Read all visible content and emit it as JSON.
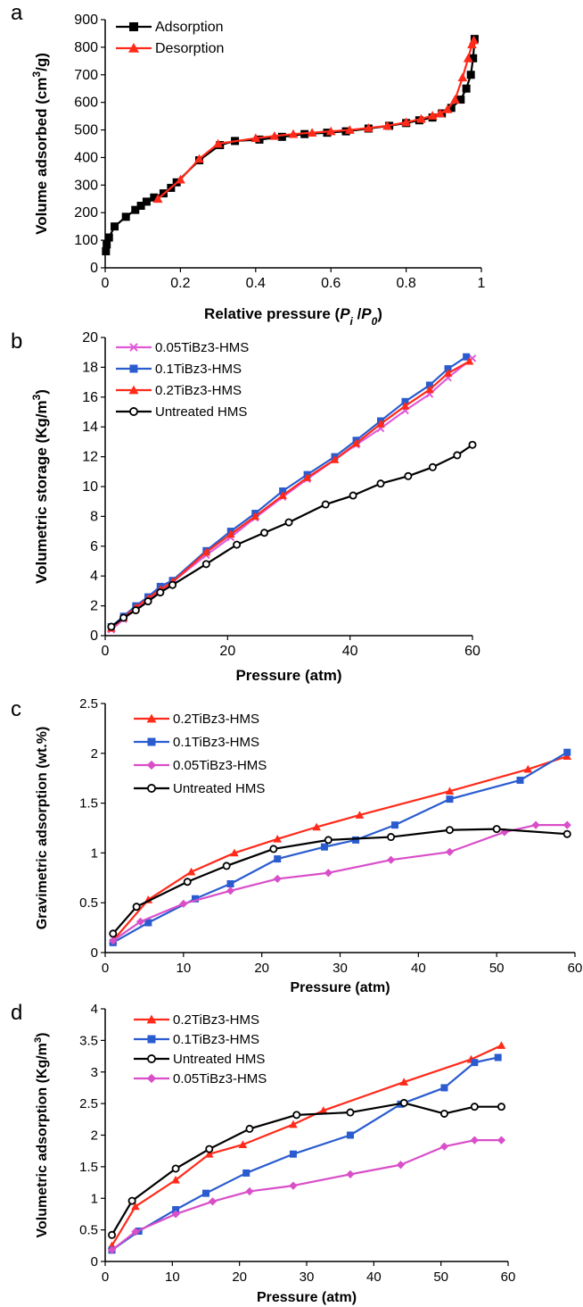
{
  "chart_data": [
    {
      "type": "line",
      "panel_letter": "a",
      "xlabel": "Relative pressure (P",
      "xlabel_parts": [
        "Relative pressure (",
        "P",
        "i",
        " /",
        "P",
        "0",
        ")"
      ],
      "ylabel": "Volume adsorbed (cm",
      "ylabel_parts": [
        "Volume adsorbed (cm",
        "3",
        "/g)"
      ],
      "xlim": [
        0,
        1
      ],
      "ylim": [
        0,
        900
      ],
      "xticks": [
        0,
        0.2,
        0.4,
        0.6,
        0.8,
        1
      ],
      "xtick_labels": [
        "0",
        "0.2",
        "0.4",
        "0.6",
        "0.8",
        "1"
      ],
      "yticks": [
        0,
        100,
        200,
        300,
        400,
        500,
        600,
        700,
        800,
        900
      ],
      "ytick_labels": [
        "0",
        "100",
        "200",
        "300",
        "400",
        "500",
        "600",
        "700",
        "800",
        "900"
      ],
      "legend_position": "top-left",
      "series": [
        {
          "name": "Adsorption",
          "color": "#000000",
          "marker": "square",
          "x": [
            0.002,
            0.004,
            0.01,
            0.025,
            0.055,
            0.08,
            0.095,
            0.11,
            0.13,
            0.155,
            0.175,
            0.19,
            0.25,
            0.305,
            0.345,
            0.41,
            0.47,
            0.53,
            0.59,
            0.64,
            0.7,
            0.755,
            0.8,
            0.835,
            0.87,
            0.895,
            0.92,
            0.945,
            0.96,
            0.972,
            0.978,
            0.982
          ],
          "y": [
            60,
            85,
            110,
            150,
            185,
            210,
            225,
            240,
            255,
            270,
            290,
            310,
            390,
            445,
            460,
            465,
            475,
            485,
            490,
            495,
            505,
            515,
            525,
            535,
            545,
            560,
            580,
            610,
            650,
            700,
            760,
            830
          ]
        },
        {
          "name": "Desorption",
          "color": "#ff2a1a",
          "marker": "triangle",
          "x": [
            0.14,
            0.2,
            0.25,
            0.3,
            0.4,
            0.45,
            0.5,
            0.55,
            0.6,
            0.65,
            0.7,
            0.75,
            0.8,
            0.84,
            0.87,
            0.89,
            0.91,
            0.93,
            0.95,
            0.965,
            0.975,
            0.98
          ],
          "y": [
            250,
            320,
            395,
            450,
            470,
            478,
            485,
            490,
            495,
            500,
            507,
            515,
            528,
            540,
            552,
            560,
            575,
            610,
            690,
            760,
            810,
            825
          ]
        }
      ]
    },
    {
      "type": "line",
      "panel_letter": "b",
      "xlabel": "Pressure (atm)",
      "ylabel_parts": [
        "Volumetric storage (Kg/m",
        "3",
        ")"
      ],
      "xlim": [
        0,
        60
      ],
      "ylim": [
        0,
        20
      ],
      "xticks": [
        0,
        20,
        40,
        60
      ],
      "xtick_labels": [
        "0",
        "20",
        "40",
        "60"
      ],
      "yticks": [
        0,
        2,
        4,
        6,
        8,
        10,
        12,
        14,
        16,
        18,
        20
      ],
      "ytick_labels": [
        "0",
        "2",
        "4",
        "6",
        "8",
        "10",
        "12",
        "14",
        "16",
        "18",
        "20"
      ],
      "legend_position": "top-left",
      "series": [
        {
          "name": "0.05TiBz3-HMS",
          "color": "#e05ad8",
          "marker": "x",
          "x": [
            1,
            3,
            5,
            7,
            9,
            11,
            16.5,
            20.5,
            24.5,
            29,
            33,
            37.5,
            41,
            45,
            49,
            53,
            56,
            60
          ],
          "y": [
            0.4,
            1.1,
            1.8,
            2.4,
            3.0,
            3.6,
            5.4,
            6.6,
            7.9,
            9.3,
            10.5,
            11.8,
            12.8,
            13.9,
            15.1,
            16.2,
            17.3,
            18.6
          ]
        },
        {
          "name": "0.1TiBz3-HMS",
          "color": "#2a5ccf",
          "marker": "square",
          "x": [
            1,
            3,
            5,
            7,
            9,
            11,
            16.5,
            20.5,
            24.5,
            29,
            33,
            37.5,
            41,
            45,
            49,
            53,
            56,
            59
          ],
          "y": [
            0.6,
            1.3,
            2.0,
            2.6,
            3.3,
            3.7,
            5.7,
            7.0,
            8.2,
            9.7,
            10.8,
            12.0,
            13.1,
            14.4,
            15.7,
            16.8,
            17.9,
            18.7
          ]
        },
        {
          "name": "0.2TiBz3-HMS",
          "color": "#ff2a1a",
          "marker": "triangle",
          "x": [
            1,
            3,
            5,
            7,
            9,
            11,
            16.5,
            20.5,
            24.5,
            29,
            33,
            37.5,
            41,
            45,
            49,
            53,
            56,
            59.5
          ],
          "y": [
            0.5,
            1.2,
            1.9,
            2.5,
            3.1,
            3.6,
            5.6,
            6.8,
            8.0,
            9.4,
            10.6,
            11.8,
            12.9,
            14.2,
            15.4,
            16.5,
            17.6,
            18.4
          ]
        },
        {
          "name": "Untreated HMS",
          "color": "#000000",
          "marker": "circle",
          "x": [
            1,
            3,
            5,
            7,
            9,
            11,
            16.5,
            21.5,
            26,
            30,
            36,
            40.5,
            45,
            49.5,
            53.5,
            57.5,
            60
          ],
          "y": [
            0.6,
            1.2,
            1.7,
            2.3,
            2.9,
            3.4,
            4.8,
            6.1,
            6.9,
            7.6,
            8.8,
            9.4,
            10.2,
            10.7,
            11.3,
            12.1,
            12.8
          ]
        }
      ]
    },
    {
      "type": "line",
      "panel_letter": "c",
      "xlabel": "Pressure (atm)",
      "ylabel": "Gravimetric adsorption (wt.%)",
      "xlim": [
        0,
        60
      ],
      "ylim": [
        0,
        2.5
      ],
      "xticks": [
        0,
        10,
        20,
        30,
        40,
        50,
        60
      ],
      "xtick_labels": [
        "0",
        "10",
        "20",
        "30",
        "40",
        "50",
        "60"
      ],
      "yticks": [
        0,
        0.5,
        1,
        1.5,
        2,
        2.5
      ],
      "ytick_labels": [
        "0",
        "0.5",
        "1",
        "1.5",
        "2",
        "2.5"
      ],
      "legend_position": "top-left",
      "series": [
        {
          "name": "0.2TiBz3-HMS",
          "color": "#ff2a1a",
          "marker": "triangle",
          "x": [
            1,
            5.5,
            11,
            16.5,
            22,
            27,
            32.5,
            44,
            54,
            59
          ],
          "y": [
            0.12,
            0.53,
            0.81,
            1.0,
            1.14,
            1.26,
            1.38,
            1.62,
            1.84,
            1.97
          ]
        },
        {
          "name": "0.1TiBz3-HMS",
          "color": "#2a5ccf",
          "marker": "square",
          "x": [
            1,
            5.5,
            11.5,
            16,
            22,
            28,
            32,
            37,
            44,
            53,
            59
          ],
          "y": [
            0.1,
            0.3,
            0.54,
            0.69,
            0.94,
            1.06,
            1.13,
            1.28,
            1.54,
            1.73,
            2.01
          ]
        },
        {
          "name": "0.05TiBz3-HMS",
          "color": "#d94ec9",
          "marker": "diamond",
          "x": [
            1,
            4.5,
            10,
            16,
            22,
            28.5,
            36.5,
            44,
            51,
            55,
            59
          ],
          "y": [
            0.12,
            0.31,
            0.49,
            0.62,
            0.74,
            0.8,
            0.93,
            1.01,
            1.21,
            1.28,
            1.28
          ]
        },
        {
          "name": "Untreated HMS",
          "color": "#000000",
          "marker": "circle",
          "x": [
            1,
            4,
            10.5,
            15.5,
            21.5,
            28.5,
            36.5,
            44,
            50,
            59
          ],
          "y": [
            0.19,
            0.46,
            0.71,
            0.87,
            1.04,
            1.13,
            1.16,
            1.23,
            1.24,
            1.19
          ]
        }
      ]
    },
    {
      "type": "line",
      "panel_letter": "d",
      "xlabel": "Pressure (atm)",
      "ylabel_parts": [
        "Volumetric adsorption (Kg/m",
        "3",
        ")"
      ],
      "xlim": [
        0,
        60
      ],
      "ylim": [
        0,
        4
      ],
      "xticks": [
        0,
        10,
        20,
        30,
        40,
        50,
        60
      ],
      "xtick_labels": [
        "0",
        "10",
        "20",
        "30",
        "40",
        "50",
        "60"
      ],
      "yticks": [
        0,
        0.5,
        1,
        1.5,
        2,
        2.5,
        3,
        3.5,
        4
      ],
      "ytick_labels": [
        "0",
        "0.5",
        "1",
        "1.5",
        "2",
        "2.5",
        "3",
        "3.5",
        "4"
      ],
      "legend_position": "top-left",
      "series": [
        {
          "name": "0.2TiBz3-HMS",
          "color": "#ff2a1a",
          "marker": "triangle",
          "x": [
            1,
            4.5,
            10.5,
            15.5,
            20.5,
            28,
            32.5,
            44.5,
            54.5,
            59
          ],
          "y": [
            0.25,
            0.87,
            1.29,
            1.7,
            1.85,
            2.17,
            2.39,
            2.84,
            3.2,
            3.42
          ]
        },
        {
          "name": "0.1TiBz3-HMS",
          "color": "#2a5ccf",
          "marker": "square",
          "x": [
            1,
            5,
            10.5,
            15,
            21,
            28,
            36.5,
            44,
            50.5,
            55,
            58.5
          ],
          "y": [
            0.18,
            0.48,
            0.82,
            1.08,
            1.4,
            1.7,
            2.0,
            2.49,
            2.75,
            3.15,
            3.23
          ]
        },
        {
          "name": "Untreated HMS",
          "color": "#000000",
          "marker": "circle",
          "x": [
            1,
            4,
            10.5,
            15.5,
            21.5,
            28.5,
            36.5,
            44.5,
            50.5,
            55,
            59
          ],
          "y": [
            0.42,
            0.96,
            1.47,
            1.78,
            2.1,
            2.32,
            2.36,
            2.51,
            2.34,
            2.45,
            2.45
          ]
        },
        {
          "name": "0.05TiBz3-HMS",
          "color": "#d94ec9",
          "marker": "diamond",
          "x": [
            1,
            4.5,
            10.5,
            16,
            21.5,
            28,
            36.5,
            44,
            50.5,
            55,
            59
          ],
          "y": [
            0.18,
            0.47,
            0.75,
            0.95,
            1.11,
            1.2,
            1.38,
            1.53,
            1.82,
            1.92,
            1.92
          ]
        }
      ]
    }
  ]
}
